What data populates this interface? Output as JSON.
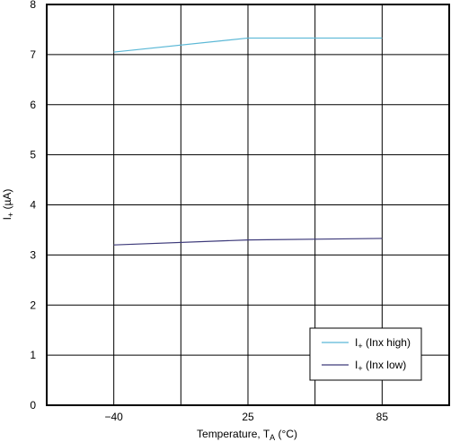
{
  "chart_data": {
    "type": "line",
    "x_categories": [
      "−40",
      "25",
      "85"
    ],
    "x_values": [
      -40,
      25,
      85
    ],
    "ylim": [
      0,
      8
    ],
    "y_ticks": [
      "0",
      "1",
      "2",
      "3",
      "4",
      "5",
      "6",
      "7",
      "8"
    ],
    "xlabel": {
      "main": "Temperature, T",
      "sub": "A",
      "unit": " (°C)"
    },
    "ylabel": {
      "main": "I",
      "sub": "+",
      "unit": " (µA)"
    },
    "grid": true,
    "legend_position": "bottom-right",
    "series": [
      {
        "name": {
          "main": "I",
          "sub": "+",
          "rest": " (Inx high)"
        },
        "color": "#5bb8d6",
        "values": [
          7.05,
          7.33,
          7.33
        ]
      },
      {
        "name": {
          "main": "I",
          "sub": "+",
          "rest": " (Inx low)"
        },
        "color": "#3d3a7a",
        "values": [
          3.2,
          3.3,
          3.33
        ]
      }
    ]
  }
}
